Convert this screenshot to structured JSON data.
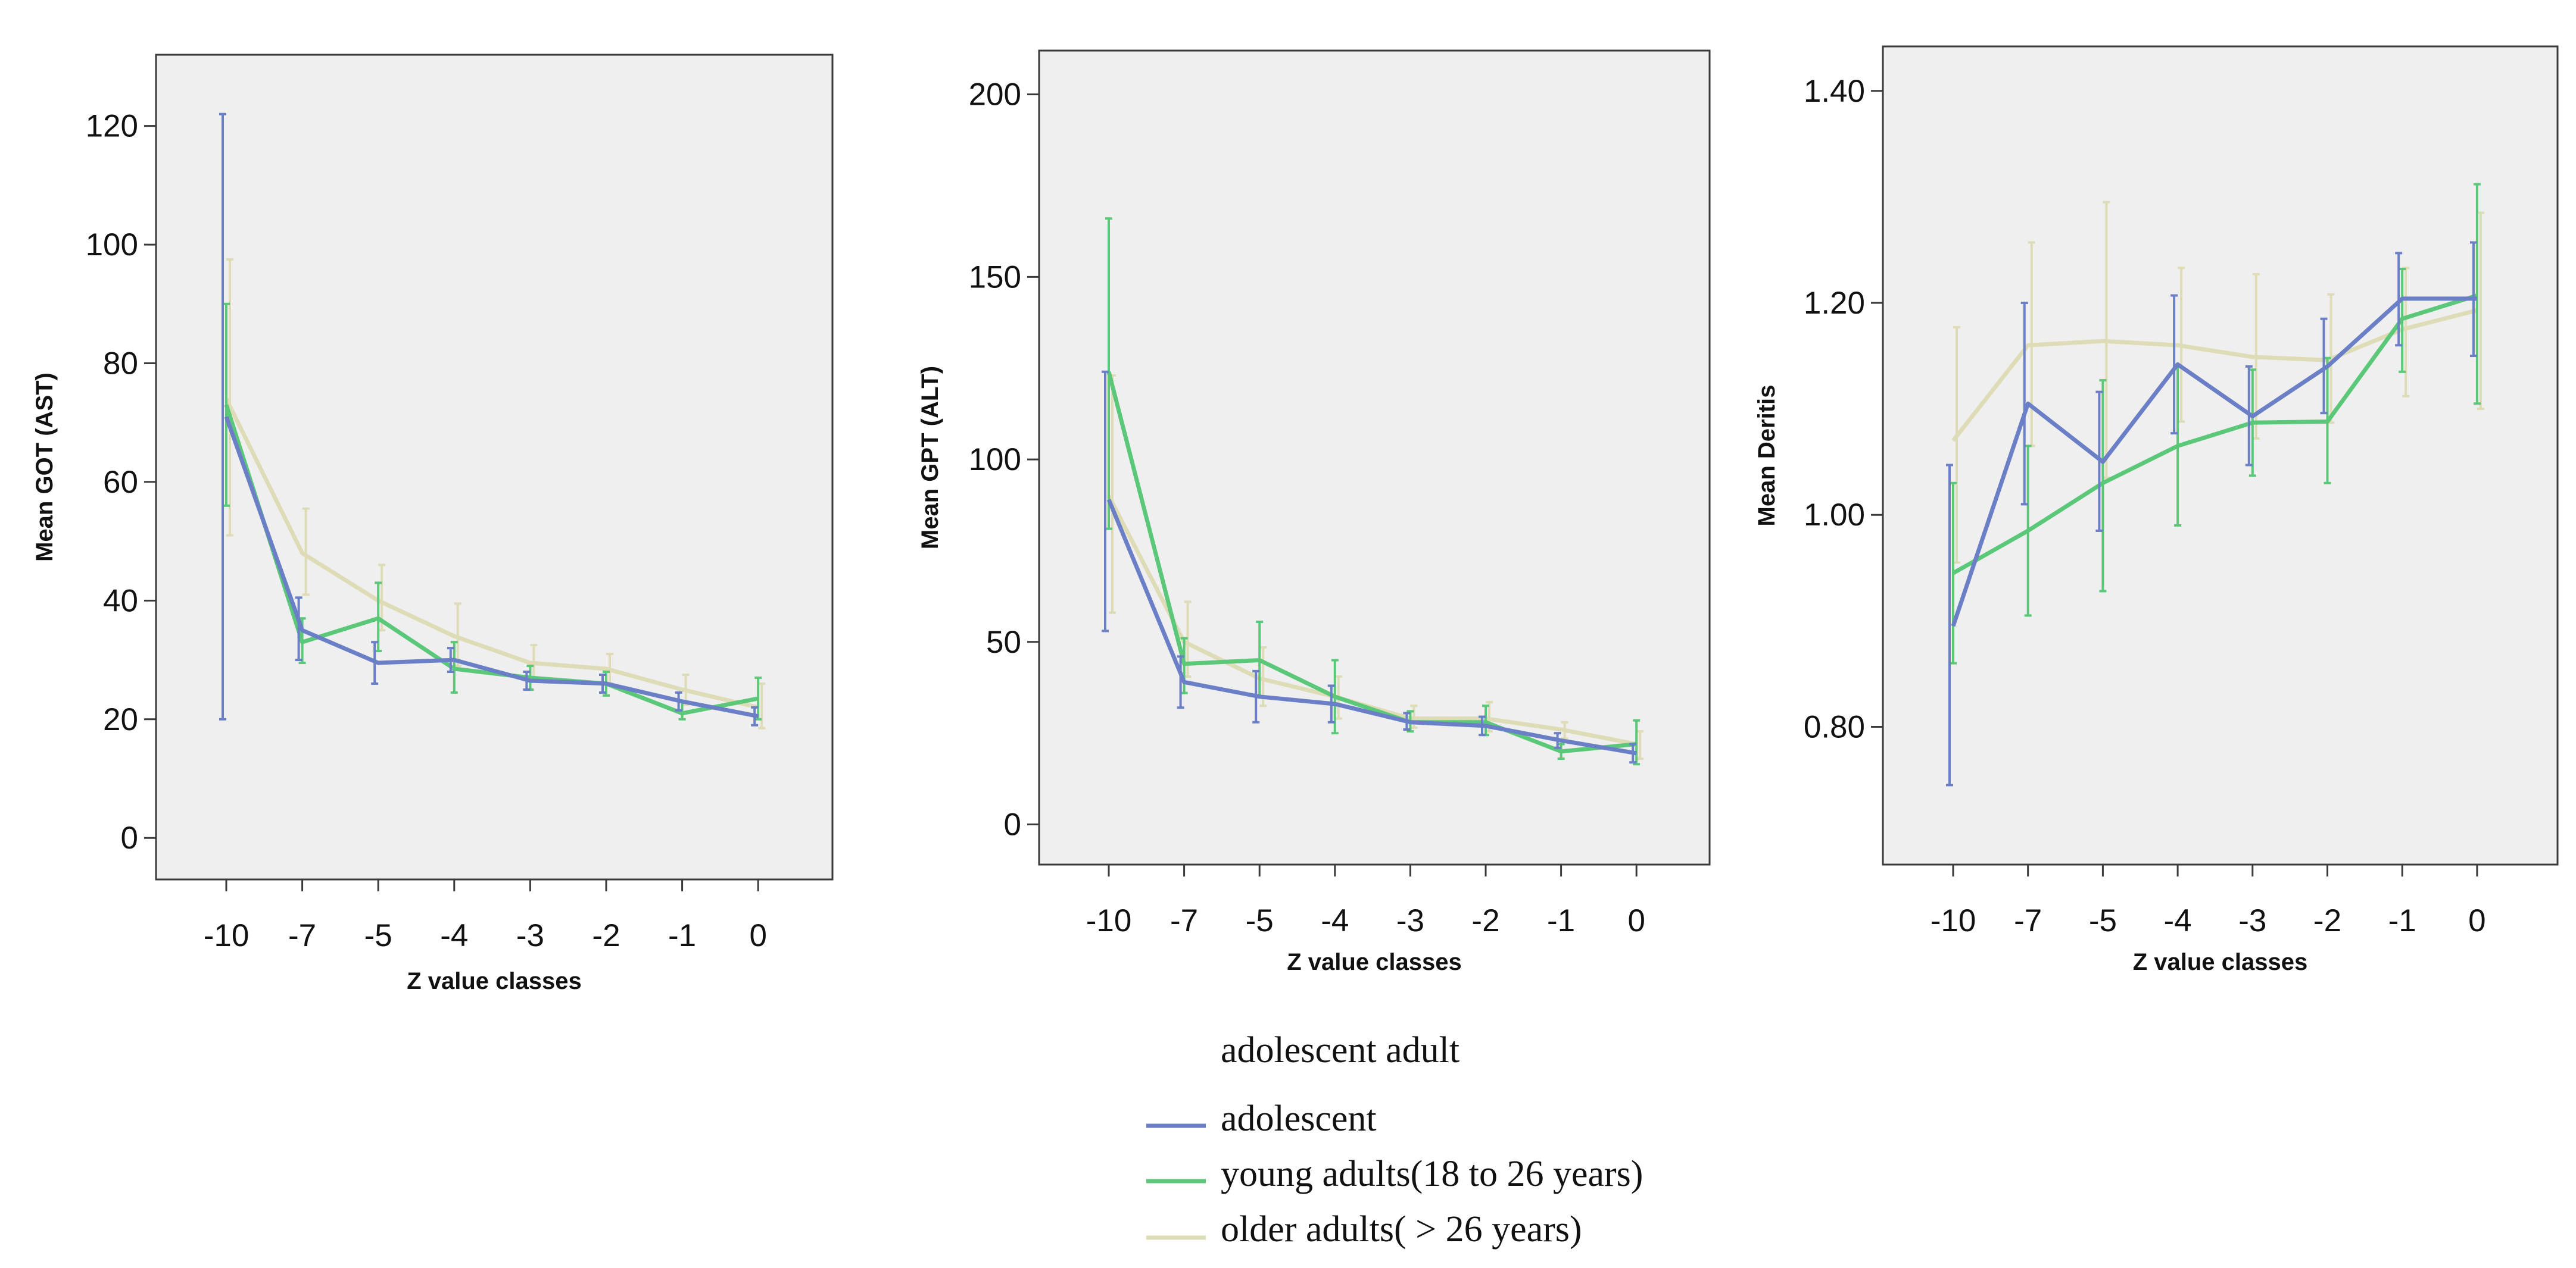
{
  "chart_data": [
    {
      "type": "line",
      "title": "",
      "xlabel": "Z value classes",
      "ylabel": "Mean GOT (AST)",
      "categories": [
        "-10",
        "-7",
        "-5",
        "-4",
        "-3",
        "-2",
        "-1",
        "0"
      ],
      "ylim": [
        -7,
        132
      ],
      "yticks": [
        0,
        20,
        40,
        60,
        80,
        100,
        120
      ],
      "ytick_labels": [
        "0",
        "20",
        "40",
        "60",
        "80",
        "100",
        "120"
      ],
      "error_bars": true,
      "series": [
        {
          "name": "adolescent",
          "color": "#6b7fc6",
          "values": [
            71,
            35,
            29.5,
            30,
            26.5,
            26,
            23,
            20.5
          ],
          "err_low": [
            20,
            30,
            26,
            28,
            25,
            24.5,
            21.5,
            19
          ],
          "err_high": [
            122,
            40.5,
            33,
            32,
            28,
            27.5,
            24.5,
            22
          ]
        },
        {
          "name": "young adults(18 to 26 years)",
          "color": "#5ac878",
          "values": [
            73,
            33,
            37,
            28.5,
            27,
            26,
            21,
            23.5
          ],
          "err_low": [
            56,
            29.5,
            31.5,
            24.5,
            25,
            24,
            20,
            20
          ],
          "err_high": [
            90,
            37,
            43,
            33,
            29,
            28,
            23,
            27
          ]
        },
        {
          "name": "older adults( > 26 years)",
          "color": "#dedcb6",
          "values": [
            74,
            48,
            40,
            34,
            29.5,
            28.5,
            25,
            22
          ],
          "err_low": [
            51,
            41,
            35,
            29,
            27,
            26,
            22.5,
            18.5
          ],
          "err_high": [
            97.5,
            55.5,
            46,
            39.5,
            32.5,
            31,
            27.5,
            26
          ]
        }
      ]
    },
    {
      "type": "line",
      "title": "",
      "xlabel": "Z value classes",
      "ylabel": "Mean GPT (ALT)",
      "categories": [
        "-10",
        "-7",
        "-5",
        "-4",
        "-3",
        "-2",
        "-1",
        "0"
      ],
      "ylim": [
        -11,
        212
      ],
      "yticks": [
        0,
        50,
        100,
        150,
        200
      ],
      "ytick_labels": [
        "0",
        "50",
        "100",
        "150",
        "200"
      ],
      "error_bars": true,
      "series": [
        {
          "name": "adolescent",
          "color": "#6b7fc6",
          "values": [
            89,
            39,
            35,
            33,
            28,
            27,
            23,
            19.5
          ],
          "err_low": [
            53,
            32,
            28,
            28,
            26,
            24.5,
            21,
            17
          ],
          "err_high": [
            124,
            46,
            42,
            38,
            30.5,
            29.5,
            25,
            22
          ]
        },
        {
          "name": "young adults(18 to 26 years)",
          "color": "#5ac878",
          "values": [
            124,
            44,
            45,
            35,
            28,
            28,
            20,
            22
          ],
          "err_low": [
            81,
            36,
            35,
            25,
            25.5,
            24.5,
            18,
            16.5
          ],
          "err_high": [
            166,
            51,
            55.5,
            45,
            31,
            32.5,
            22,
            28.5
          ]
        },
        {
          "name": "older adults( > 26 years)",
          "color": "#dedcb6",
          "values": [
            90,
            50,
            40,
            35,
            29,
            29,
            26,
            22
          ],
          "err_low": [
            58,
            40.5,
            32.5,
            29,
            26.5,
            25.5,
            23.5,
            18
          ],
          "err_high": [
            123,
            61,
            48.5,
            40.5,
            32.5,
            33.5,
            28,
            25.5
          ]
        }
      ]
    },
    {
      "type": "line",
      "title": "",
      "xlabel": "Z value classes",
      "ylabel": "Mean Deritis",
      "categories": [
        "-10",
        "-7",
        "-5",
        "-4",
        "-3",
        "-2",
        "-1",
        "0"
      ],
      "ylim": [
        0.67,
        1.442
      ],
      "yticks": [
        0.8,
        1.0,
        1.2,
        1.4
      ],
      "ytick_labels": [
        "0.80",
        "1.00",
        "1.20",
        "1.40"
      ],
      "error_bars": true,
      "series": [
        {
          "name": "adolescent",
          "color": "#6b7fc6",
          "values": [
            0.895,
            1.105,
            1.05,
            1.142,
            1.093,
            1.14,
            1.204,
            1.204
          ],
          "err_low": [
            0.745,
            1.01,
            0.985,
            1.077,
            1.047,
            1.096,
            1.16,
            1.15
          ],
          "err_high": [
            1.047,
            1.2,
            1.116,
            1.207,
            1.14,
            1.185,
            1.247,
            1.257
          ]
        },
        {
          "name": "young adults(18 to 26 years)",
          "color": "#5ac878",
          "values": [
            0.945,
            0.985,
            1.03,
            1.065,
            1.087,
            1.088,
            1.185,
            1.207
          ],
          "err_low": [
            0.86,
            0.905,
            0.928,
            0.99,
            1.037,
            1.03,
            1.135,
            1.105
          ],
          "err_high": [
            1.03,
            1.065,
            1.127,
            1.14,
            1.137,
            1.148,
            1.232,
            1.312
          ]
        },
        {
          "name": "older adults( > 26 years)",
          "color": "#dedcb6",
          "values": [
            1.07,
            1.16,
            1.164,
            1.16,
            1.149,
            1.146,
            1.175,
            1.193
          ],
          "err_low": [
            0.955,
            1.065,
            1.035,
            1.088,
            1.072,
            1.087,
            1.112,
            1.1
          ],
          "err_high": [
            1.177,
            1.257,
            1.295,
            1.233,
            1.227,
            1.208,
            1.233,
            1.285
          ]
        }
      ]
    }
  ],
  "legend": {
    "title": "adolescent adult",
    "items": [
      {
        "label": "adolescent",
        "color": "#6b7fc6"
      },
      {
        "label": "young adults(18 to 26 years)",
        "color": "#5ac878"
      },
      {
        "label": "older  adults( > 26 years)",
        "color": "#dedcb6"
      }
    ]
  }
}
